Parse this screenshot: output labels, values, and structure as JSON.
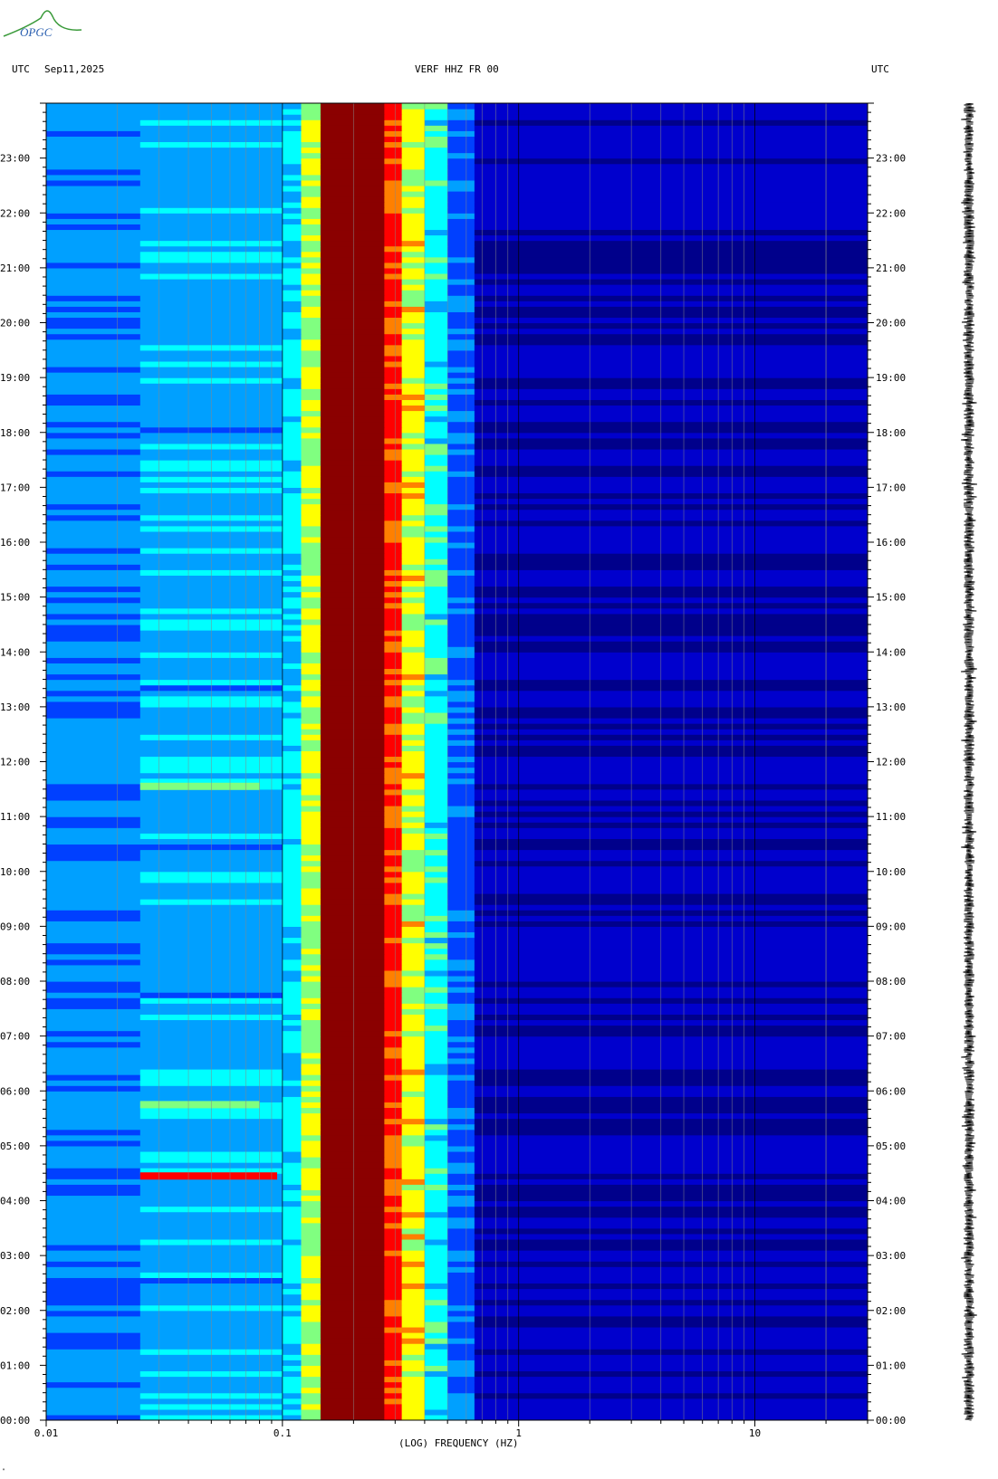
{
  "header": {
    "tz_left": "UTC",
    "date": "Sep11,2025",
    "station": "VERF HHZ FR 00",
    "tz_right": "UTC"
  },
  "logo": {
    "text": "OPGC"
  },
  "chart_data": {
    "type": "heatmap",
    "title": "VERF HHZ FR 00",
    "xlabel": "(LOG) FREQUENCY (HZ)",
    "ylabel": "UTC",
    "x_scale": "log",
    "xlim": [
      0.01,
      30
    ],
    "ylim": [
      "00:00",
      "24:00"
    ],
    "x_tick_labels": [
      {
        "value": 0.01,
        "label": "0.01"
      },
      {
        "value": 0.1,
        "label": "0.1"
      },
      {
        "value": 1,
        "label": "1"
      },
      {
        "value": 10,
        "label": "10"
      }
    ],
    "y_tick_labels": [
      "00:00",
      "01:00",
      "02:00",
      "03:00",
      "04:00",
      "05:00",
      "06:00",
      "07:00",
      "08:00",
      "09:00",
      "10:00",
      "11:00",
      "12:00",
      "13:00",
      "14:00",
      "15:00",
      "16:00",
      "17:00",
      "18:00",
      "19:00",
      "20:00",
      "21:00",
      "22:00",
      "23:00"
    ],
    "colorscale": [
      "#00008b",
      "#0000cd",
      "#0040ff",
      "#00a0ff",
      "#00ffff",
      "#80ff80",
      "#ffff00",
      "#ff8000",
      "#ff0000",
      "#8b0000"
    ],
    "spectral_bands": [
      {
        "f_low": 0.01,
        "f_high": 0.025,
        "level": 0.3
      },
      {
        "f_low": 0.025,
        "f_high": 0.1,
        "level": 0.35
      },
      {
        "f_low": 0.1,
        "f_high": 0.12,
        "level": 0.42
      },
      {
        "f_low": 0.12,
        "f_high": 0.145,
        "level": 0.62
      },
      {
        "f_low": 0.145,
        "f_high": 0.27,
        "level": 1.0
      },
      {
        "f_low": 0.27,
        "f_high": 0.32,
        "level": 0.85
      },
      {
        "f_low": 0.32,
        "f_high": 0.4,
        "level": 0.65
      },
      {
        "f_low": 0.4,
        "f_high": 0.5,
        "level": 0.45
      },
      {
        "f_low": 0.5,
        "f_high": 0.65,
        "level": 0.25
      },
      {
        "f_low": 0.65,
        "f_high": 30,
        "level": 0.08
      }
    ],
    "events": [
      {
        "time_h": 4.45,
        "f_low": 0.025,
        "f_high": 0.095,
        "level": 0.88
      },
      {
        "time_h": 5.75,
        "f_low": 0.025,
        "f_high": 0.08,
        "level": 0.55
      },
      {
        "time_h": 11.55,
        "f_low": 0.025,
        "f_high": 0.08,
        "level": 0.52
      }
    ]
  },
  "waveform": {
    "color": "#000000"
  }
}
